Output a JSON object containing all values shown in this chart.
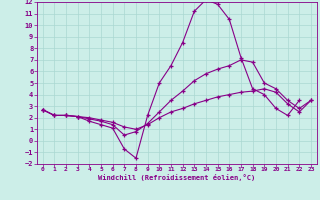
{
  "xlabel": "Windchill (Refroidissement éolien,°C)",
  "background_color": "#cceee8",
  "grid_color": "#aad8d2",
  "line_color": "#880088",
  "xlim": [
    -0.5,
    23.5
  ],
  "ylim": [
    -2,
    12
  ],
  "xticks": [
    0,
    1,
    2,
    3,
    4,
    5,
    6,
    7,
    8,
    9,
    10,
    11,
    12,
    13,
    14,
    15,
    16,
    17,
    18,
    19,
    20,
    21,
    22,
    23
  ],
  "yticks": [
    -2,
    -1,
    0,
    1,
    2,
    3,
    4,
    5,
    6,
    7,
    8,
    9,
    10,
    11,
    12
  ],
  "series": [
    {
      "x": [
        0,
        1,
        2,
        3,
        4,
        5,
        6,
        7,
        8,
        9,
        10,
        11,
        12,
        13,
        14,
        15,
        16,
        17,
        18,
        19,
        20,
        21,
        22,
        23
      ],
      "y": [
        2.7,
        2.2,
        2.2,
        2.1,
        1.7,
        1.4,
        1.1,
        -0.7,
        -1.5,
        2.2,
        5.0,
        6.5,
        8.5,
        11.2,
        12.2,
        11.8,
        10.5,
        7.2,
        4.5,
        4.0,
        2.8,
        2.2,
        3.5,
        null
      ]
    },
    {
      "x": [
        0,
        1,
        2,
        3,
        4,
        5,
        6,
        7,
        8,
        9,
        10,
        11,
        12,
        13,
        14,
        15,
        16,
        17,
        18,
        19,
        20,
        21,
        22,
        23
      ],
      "y": [
        2.7,
        2.2,
        2.2,
        2.1,
        1.9,
        1.7,
        1.4,
        0.5,
        0.8,
        1.5,
        2.5,
        3.5,
        4.3,
        5.2,
        5.8,
        6.2,
        6.5,
        7.0,
        6.8,
        5.0,
        4.5,
        3.5,
        2.8,
        3.5
      ]
    },
    {
      "x": [
        0,
        1,
        2,
        3,
        4,
        5,
        6,
        7,
        8,
        9,
        10,
        11,
        12,
        13,
        14,
        15,
        16,
        17,
        18,
        19,
        20,
        21,
        22,
        23
      ],
      "y": [
        2.7,
        2.2,
        2.2,
        2.1,
        2.0,
        1.8,
        1.6,
        1.2,
        1.0,
        1.4,
        2.0,
        2.5,
        2.8,
        3.2,
        3.5,
        3.8,
        4.0,
        4.2,
        4.3,
        4.5,
        4.2,
        3.2,
        2.5,
        3.5
      ]
    }
  ]
}
